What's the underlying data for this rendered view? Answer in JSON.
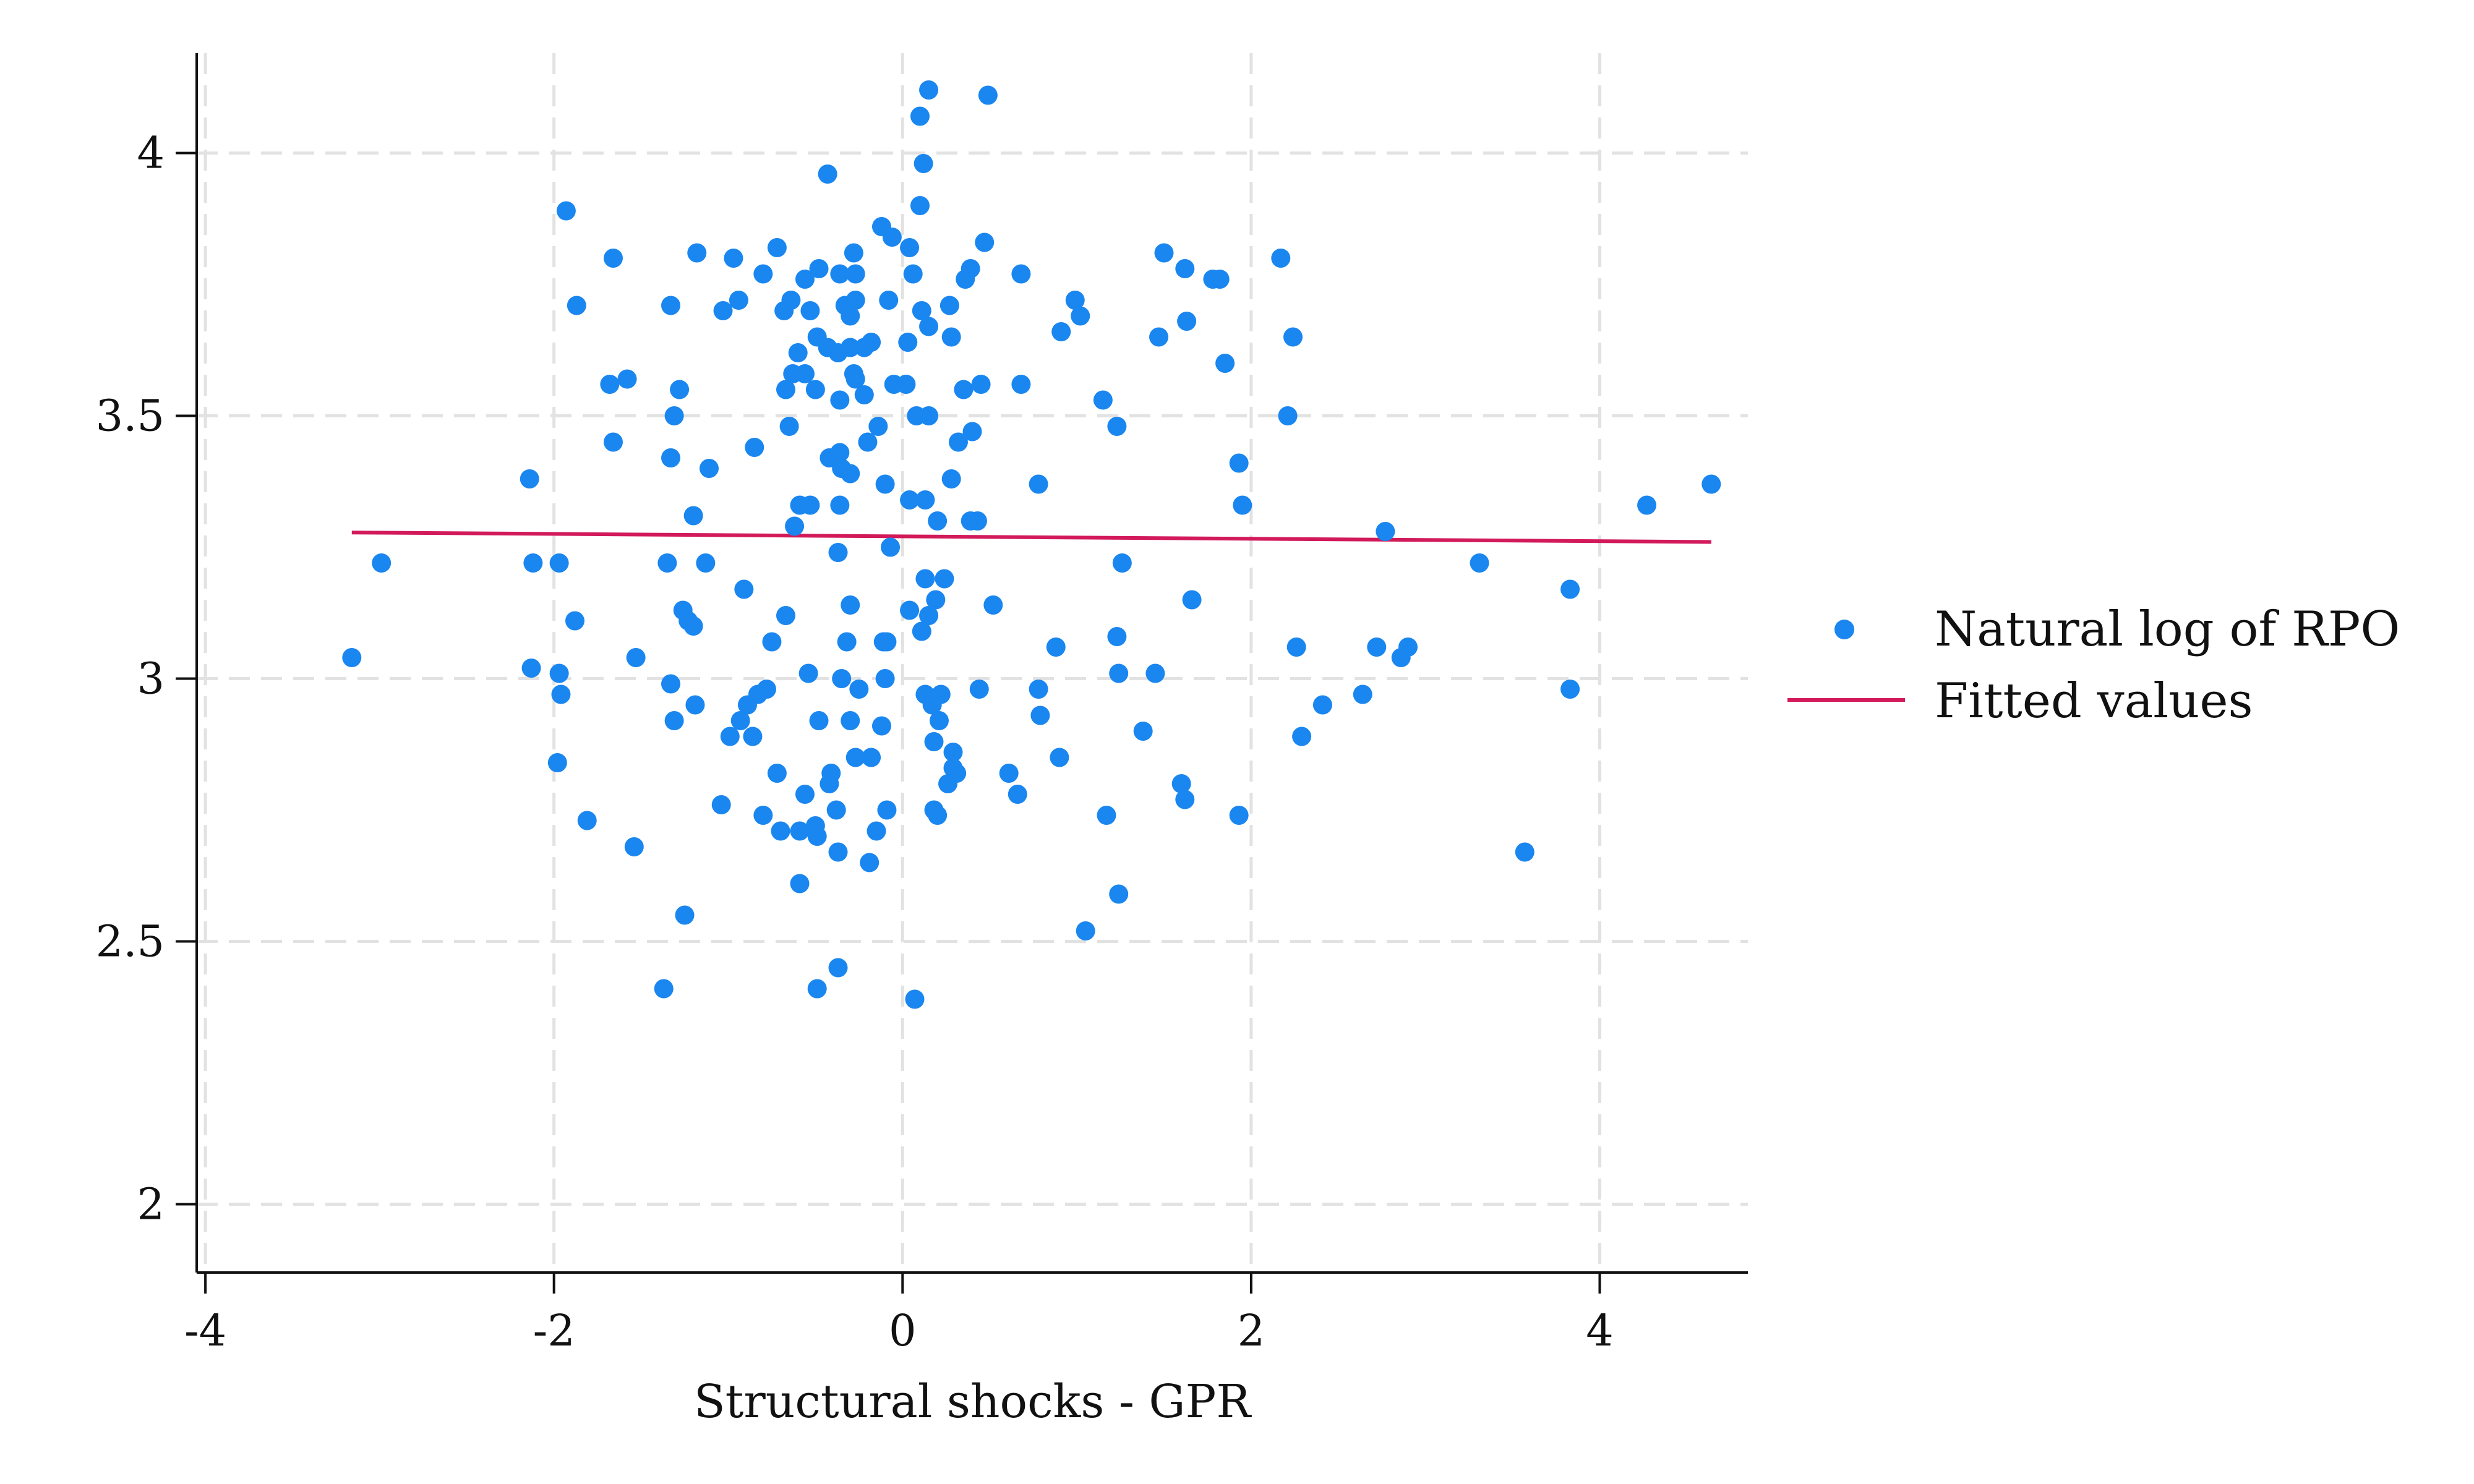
{
  "chart_data": {
    "type": "scatter",
    "title": "",
    "xlabel": "Structural shocks - GPR",
    "ylabel": "",
    "xlim": [
      -4.05,
      4.85
    ],
    "ylim": [
      1.87,
      4.19
    ],
    "xticks": [
      -4,
      -2,
      0,
      2,
      4
    ],
    "xtick_labels": [
      "-4",
      "-2",
      "0",
      "2",
      "4"
    ],
    "yticks": [
      2,
      2.5,
      3,
      3.5,
      4
    ],
    "ytick_labels": [
      "2",
      "2.5",
      "3",
      "3.5",
      "4"
    ],
    "grid": true,
    "legend_position": "right",
    "colors": {
      "points": "#1a86f0",
      "fit": "#d21a5a",
      "grid": "#e2e2e2",
      "axis": "#111111"
    },
    "series": [
      {
        "name": "Natural log of RPO",
        "kind": "scatter",
        "points": [
          [
            0.15,
            4.12
          ],
          [
            0.49,
            4.11
          ],
          [
            0.1,
            4.07
          ],
          [
            -0.43,
            3.96
          ],
          [
            0.12,
            3.98
          ],
          [
            0.1,
            3.9
          ],
          [
            -1.93,
            3.89
          ],
          [
            -0.12,
            3.86
          ],
          [
            -0.06,
            3.84
          ],
          [
            0.47,
            3.83
          ],
          [
            0.04,
            3.82
          ],
          [
            -0.72,
            3.82
          ],
          [
            -0.28,
            3.81
          ],
          [
            -1.18,
            3.81
          ],
          [
            -0.97,
            3.8
          ],
          [
            -1.66,
            3.8
          ],
          [
            1.5,
            3.81
          ],
          [
            2.17,
            3.8
          ],
          [
            0.39,
            3.78
          ],
          [
            1.62,
            3.78
          ],
          [
            -0.48,
            3.78
          ],
          [
            0.06,
            3.77
          ],
          [
            -0.36,
            3.77
          ],
          [
            -0.27,
            3.77
          ],
          [
            0.68,
            3.77
          ],
          [
            -0.56,
            3.76
          ],
          [
            0.36,
            3.76
          ],
          [
            1.78,
            3.76
          ],
          [
            1.82,
            3.76
          ],
          [
            -0.8,
            3.77
          ],
          [
            -0.94,
            3.72
          ],
          [
            -1.87,
            3.71
          ],
          [
            -1.33,
            3.71
          ],
          [
            -0.64,
            3.72
          ],
          [
            -0.33,
            3.71
          ],
          [
            -0.27,
            3.72
          ],
          [
            -0.08,
            3.72
          ],
          [
            0.27,
            3.71
          ],
          [
            0.99,
            3.72
          ],
          [
            -0.53,
            3.7
          ],
          [
            -0.68,
            3.7
          ],
          [
            -1.03,
            3.7
          ],
          [
            -0.3,
            3.69
          ],
          [
            0.11,
            3.7
          ],
          [
            1.02,
            3.69
          ],
          [
            1.63,
            3.68
          ],
          [
            0.15,
            3.67
          ],
          [
            0.91,
            3.66
          ],
          [
            -0.49,
            3.65
          ],
          [
            0.28,
            3.65
          ],
          [
            2.24,
            3.65
          ],
          [
            1.47,
            3.65
          ],
          [
            -0.3,
            3.63
          ],
          [
            -0.22,
            3.63
          ],
          [
            -0.43,
            3.63
          ],
          [
            -0.18,
            3.64
          ],
          [
            -0.37,
            3.62
          ],
          [
            -0.6,
            3.62
          ],
          [
            0.03,
            3.64
          ],
          [
            1.85,
            3.6
          ],
          [
            -0.63,
            3.58
          ],
          [
            -0.56,
            3.58
          ],
          [
            -0.28,
            3.58
          ],
          [
            -0.27,
            3.57
          ],
          [
            0.45,
            3.56
          ],
          [
            0.68,
            3.56
          ],
          [
            -0.05,
            3.56
          ],
          [
            0.02,
            3.56
          ],
          [
            -1.58,
            3.57
          ],
          [
            -1.68,
            3.56
          ],
          [
            -0.67,
            3.55
          ],
          [
            -0.5,
            3.55
          ],
          [
            -1.28,
            3.55
          ],
          [
            -0.22,
            3.54
          ],
          [
            -0.36,
            3.53
          ],
          [
            0.35,
            3.55
          ],
          [
            1.15,
            3.53
          ],
          [
            0.08,
            3.5
          ],
          [
            -1.31,
            3.5
          ],
          [
            0.15,
            3.5
          ],
          [
            2.21,
            3.5
          ],
          [
            -0.14,
            3.48
          ],
          [
            -0.65,
            3.48
          ],
          [
            1.23,
            3.48
          ],
          [
            0.4,
            3.47
          ],
          [
            0.32,
            3.45
          ],
          [
            -1.66,
            3.45
          ],
          [
            -0.85,
            3.44
          ],
          [
            -0.2,
            3.45
          ],
          [
            -0.36,
            3.43
          ],
          [
            -0.42,
            3.42
          ],
          [
            -1.33,
            3.42
          ],
          [
            -1.11,
            3.4
          ],
          [
            -0.35,
            3.4
          ],
          [
            -0.3,
            3.39
          ],
          [
            1.93,
            3.41
          ],
          [
            -2.14,
            3.38
          ],
          [
            0.28,
            3.38
          ],
          [
            -0.1,
            3.37
          ],
          [
            0.78,
            3.37
          ],
          [
            -0.36,
            3.33
          ],
          [
            0.04,
            3.34
          ],
          [
            0.13,
            3.34
          ],
          [
            1.95,
            3.33
          ],
          [
            -0.59,
            3.33
          ],
          [
            -0.53,
            3.33
          ],
          [
            -1.2,
            3.31
          ],
          [
            0.39,
            3.3
          ],
          [
            0.43,
            3.3
          ],
          [
            0.2,
            3.3
          ],
          [
            -0.62,
            3.29
          ],
          [
            2.77,
            3.28
          ],
          [
            -0.07,
            3.25
          ],
          [
            -0.37,
            3.24
          ],
          [
            -2.99,
            3.22
          ],
          [
            -2.12,
            3.22
          ],
          [
            -1.97,
            3.22
          ],
          [
            -1.35,
            3.22
          ],
          [
            -1.13,
            3.22
          ],
          [
            1.26,
            3.22
          ],
          [
            3.31,
            3.22
          ],
          [
            0.13,
            3.19
          ],
          [
            0.24,
            3.19
          ],
          [
            -0.91,
            3.17
          ],
          [
            0.19,
            3.15
          ],
          [
            1.66,
            3.15
          ],
          [
            3.83,
            3.17
          ],
          [
            -0.3,
            3.14
          ],
          [
            0.04,
            3.13
          ],
          [
            0.52,
            3.14
          ],
          [
            -1.26,
            3.13
          ],
          [
            -1.23,
            3.11
          ],
          [
            0.15,
            3.12
          ],
          [
            -0.67,
            3.12
          ],
          [
            -1.88,
            3.11
          ],
          [
            -1.2,
            3.1
          ],
          [
            0.11,
            3.09
          ],
          [
            -0.32,
            3.07
          ],
          [
            -0.75,
            3.07
          ],
          [
            -0.11,
            3.07
          ],
          [
            -0.09,
            3.07
          ],
          [
            0.88,
            3.06
          ],
          [
            1.23,
            3.08
          ],
          [
            2.26,
            3.06
          ],
          [
            2.72,
            3.06
          ],
          [
            2.9,
            3.06
          ],
          [
            2.86,
            3.04
          ],
          [
            -3.16,
            3.04
          ],
          [
            -1.53,
            3.04
          ],
          [
            -2.13,
            3.02
          ],
          [
            -1.97,
            3.01
          ],
          [
            -0.54,
            3.01
          ],
          [
            -0.35,
            3.0
          ],
          [
            -0.1,
            3.0
          ],
          [
            1.24,
            3.01
          ],
          [
            1.45,
            3.01
          ],
          [
            -1.33,
            2.99
          ],
          [
            -0.25,
            2.98
          ],
          [
            -0.78,
            2.98
          ],
          [
            -0.83,
            2.97
          ],
          [
            -1.96,
            2.97
          ],
          [
            0.13,
            2.97
          ],
          [
            0.22,
            2.97
          ],
          [
            0.44,
            2.98
          ],
          [
            0.78,
            2.98
          ],
          [
            2.64,
            2.97
          ],
          [
            3.83,
            2.98
          ],
          [
            -1.19,
            2.95
          ],
          [
            -0.89,
            2.95
          ],
          [
            0.17,
            2.95
          ],
          [
            2.41,
            2.95
          ],
          [
            -0.93,
            2.92
          ],
          [
            -1.31,
            2.92
          ],
          [
            -0.48,
            2.92
          ],
          [
            -0.3,
            2.92
          ],
          [
            0.21,
            2.92
          ],
          [
            -0.12,
            2.91
          ],
          [
            0.79,
            2.93
          ],
          [
            1.38,
            2.9
          ],
          [
            2.29,
            2.89
          ],
          [
            -0.99,
            2.89
          ],
          [
            -0.86,
            2.89
          ],
          [
            0.18,
            2.88
          ],
          [
            0.29,
            2.86
          ],
          [
            0.9,
            2.85
          ],
          [
            -0.27,
            2.85
          ],
          [
            -0.18,
            2.85
          ],
          [
            0.29,
            2.83
          ],
          [
            0.31,
            2.82
          ],
          [
            -0.41,
            2.82
          ],
          [
            -0.72,
            2.82
          ],
          [
            -0.42,
            2.8
          ],
          [
            -1.98,
            2.84
          ],
          [
            0.61,
            2.82
          ],
          [
            0.26,
            2.8
          ],
          [
            1.6,
            2.8
          ],
          [
            0.66,
            2.78
          ],
          [
            -0.56,
            2.78
          ],
          [
            1.62,
            2.77
          ],
          [
            -0.38,
            2.75
          ],
          [
            0.18,
            2.75
          ],
          [
            0.2,
            2.74
          ],
          [
            -0.09,
            2.75
          ],
          [
            -1.04,
            2.76
          ],
          [
            1.17,
            2.74
          ],
          [
            -0.8,
            2.74
          ],
          [
            -1.81,
            2.73
          ],
          [
            1.93,
            2.74
          ],
          [
            -0.5,
            2.72
          ],
          [
            -0.59,
            2.71
          ],
          [
            -0.7,
            2.71
          ],
          [
            -0.15,
            2.71
          ],
          [
            -0.49,
            2.7
          ],
          [
            -1.54,
            2.68
          ],
          [
            -0.37,
            2.67
          ],
          [
            -0.19,
            2.65
          ],
          [
            3.57,
            2.67
          ],
          [
            -0.59,
            2.61
          ],
          [
            1.24,
            2.59
          ],
          [
            -1.25,
            2.55
          ],
          [
            1.05,
            2.52
          ],
          [
            -0.37,
            2.45
          ],
          [
            -1.37,
            2.41
          ],
          [
            -0.49,
            2.41
          ],
          [
            0.07,
            2.39
          ],
          [
            4.27,
            3.33
          ],
          [
            4.64,
            3.37
          ]
        ]
      },
      {
        "name": "Fitted values",
        "kind": "line",
        "points": [
          [
            -3.16,
            3.278
          ],
          [
            4.64,
            3.26
          ]
        ]
      }
    ]
  }
}
